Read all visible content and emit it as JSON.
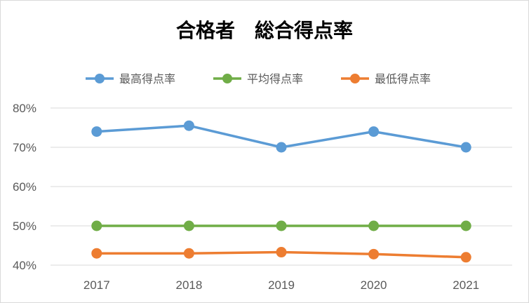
{
  "chart_data": {
    "type": "line",
    "title": "合格者　総合得点率",
    "categories": [
      "2017",
      "2018",
      "2019",
      "2020",
      "2021"
    ],
    "ylim": [
      0.4,
      0.8
    ],
    "yticks": [
      "40%",
      "50%",
      "60%",
      "70%",
      "80%"
    ],
    "grid": true,
    "legend_position": "top",
    "series": [
      {
        "name": "最高得点率",
        "color": "#5b9bd5",
        "values": [
          0.74,
          0.755,
          0.7,
          0.74,
          0.7
        ]
      },
      {
        "name": "平均得点率",
        "color": "#70ad47",
        "values": [
          0.5,
          0.5,
          0.5,
          0.5,
          0.5
        ]
      },
      {
        "name": "最低得点率",
        "color": "#ed7d31",
        "values": [
          0.43,
          0.43,
          0.433,
          0.428,
          0.42
        ]
      }
    ]
  }
}
